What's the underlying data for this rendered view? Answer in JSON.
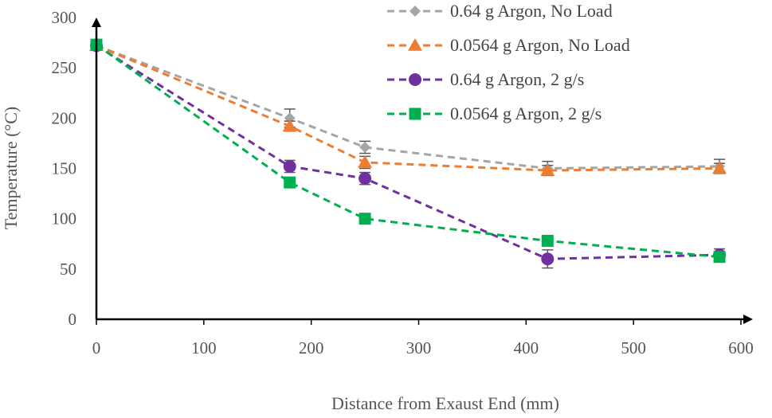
{
  "chart_data": {
    "type": "line",
    "title": "",
    "xlabel": "Distance from Exaust End (mm)",
    "ylabel": "Temperature (°C)",
    "xlim": [
      0,
      600
    ],
    "ylim": [
      0,
      300
    ],
    "xticks": [
      0,
      100,
      200,
      300,
      400,
      500,
      600
    ],
    "yticks": [
      0,
      50,
      100,
      150,
      200,
      250,
      300
    ],
    "legend_position": "top-right",
    "series": [
      {
        "name": "0.64 g Argon, No Load",
        "color": "#A5A5A5",
        "marker": "diamond",
        "x": [
          0,
          180,
          250,
          420,
          580
        ],
        "y": [
          272,
          200,
          171,
          150,
          152
        ],
        "err": [
          4,
          9,
          6,
          7,
          7
        ]
      },
      {
        "name": "0.0564 g Argon, No Load",
        "color": "#ED7D31",
        "marker": "triangle",
        "x": [
          0,
          180,
          250,
          420,
          580
        ],
        "y": [
          272,
          192,
          156,
          148,
          150
        ],
        "err": [
          4,
          5,
          6,
          5,
          5
        ]
      },
      {
        "name": "0.64 g Argon, 2 g/s",
        "color": "#7030A0",
        "marker": "circle",
        "x": [
          0,
          180,
          250,
          420,
          580
        ],
        "y": [
          272,
          152,
          140,
          60,
          64
        ],
        "err": [
          4,
          6,
          6,
          9,
          6
        ]
      },
      {
        "name": "0.0564 g Argon, 2 g/s",
        "color": "#00B050",
        "marker": "square",
        "x": [
          0,
          180,
          250,
          420,
          580
        ],
        "y": [
          273,
          136,
          100,
          78,
          62
        ],
        "err": [
          3,
          5,
          3,
          3,
          3
        ]
      }
    ]
  }
}
